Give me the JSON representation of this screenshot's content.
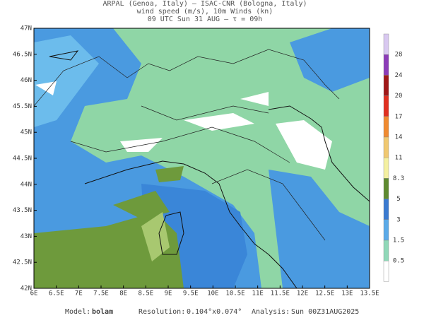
{
  "header": {
    "line1": "ARPAL (Genoa, Italy)  –  ISAC-CNR (Bologna, Italy)",
    "line2": "wind speed (m/s), 10m Winds (kn)",
    "line3": "09 UTC Sun 31 AUG  –  τ = 09h"
  },
  "map": {
    "lat_labels": [
      "47N",
      "46.5N",
      "46N",
      "45.5N",
      "45N",
      "44.5N",
      "44N",
      "43.5N",
      "43N",
      "42.5N",
      "42N"
    ],
    "lon_labels": [
      "6E",
      "6.5E",
      "7E",
      "7.5E",
      "8E",
      "8.5E",
      "9E",
      "9.5E",
      "10E",
      "10.5E",
      "11E",
      "11.5E",
      "12E",
      "12.5E",
      "13E",
      "13.5E"
    ]
  },
  "colorbar": {
    "labels": [
      28,
      24,
      20,
      17,
      14,
      11,
      8.3,
      5,
      3,
      1.5,
      0.5
    ]
  },
  "footer": {
    "model_label": "Model:",
    "model": "bolam",
    "resolution_label": "Resolution:",
    "resolution": "0.104°x0.074°",
    "analysis_label": "Analysis:",
    "analysis": "Sun 00Z31AUG2025"
  }
}
